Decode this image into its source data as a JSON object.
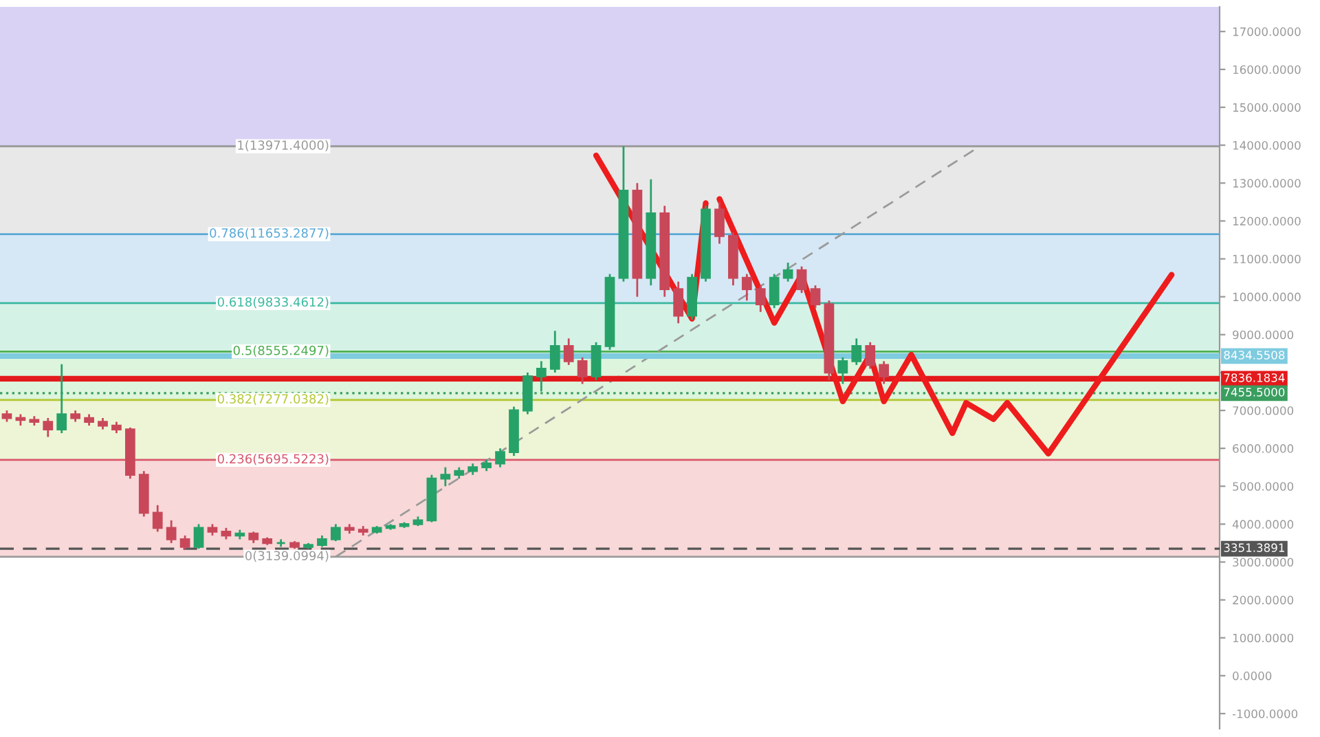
{
  "chart_data": {
    "type": "candlestick",
    "categories": [
      null,
      null,
      null,
      null,
      null,
      null,
      null,
      null,
      null,
      null,
      null,
      null,
      null,
      null,
      null,
      null,
      null,
      null,
      null,
      null,
      null,
      null,
      null,
      null,
      null,
      null,
      null,
      null,
      null,
      null,
      null,
      null,
      null,
      null,
      null,
      null,
      null,
      null,
      null,
      null,
      null,
      null,
      null,
      null,
      null,
      null,
      null,
      null,
      null,
      null,
      null,
      null,
      null,
      null,
      null,
      null,
      null,
      null,
      null,
      null,
      null,
      null,
      null,
      null,
      null,
      null,
      null,
      null,
      null,
      null,
      null,
      null,
      null,
      null,
      null,
      null,
      null,
      null,
      null,
      null,
      null,
      null,
      null,
      null,
      null,
      null,
      null,
      null,
      null
    ],
    "ohlc": [
      [
        6900,
        7000,
        6700,
        6800
      ],
      [
        6800,
        6900,
        6600,
        6750
      ],
      [
        6750,
        6850,
        6600,
        6700
      ],
      [
        6700,
        6800,
        6300,
        6500
      ],
      [
        6500,
        8220,
        6400,
        6900
      ],
      [
        6900,
        7000,
        6700,
        6800
      ],
      [
        6800,
        6900,
        6600,
        6700
      ],
      [
        6700,
        6800,
        6500,
        6600
      ],
      [
        6600,
        6700,
        6400,
        6500
      ],
      [
        6500,
        6550,
        5200,
        5300
      ],
      [
        5300,
        5400,
        4200,
        4300
      ],
      [
        4300,
        4500,
        3800,
        3900
      ],
      [
        3900,
        4100,
        3500,
        3600
      ],
      [
        3600,
        3700,
        3320,
        3400
      ],
      [
        3400,
        4000,
        3350,
        3900
      ],
      [
        3900,
        4000,
        3700,
        3800
      ],
      [
        3800,
        3900,
        3600,
        3700
      ],
      [
        3700,
        3850,
        3600,
        3750
      ],
      [
        3750,
        3800,
        3500,
        3600
      ],
      [
        3600,
        3650,
        3450,
        3500
      ],
      [
        3500,
        3600,
        3400,
        3500
      ],
      [
        3500,
        3550,
        3350,
        3400
      ],
      [
        3400,
        3500,
        3350,
        3450
      ],
      [
        3450,
        3700,
        3400,
        3600
      ],
      [
        3600,
        4000,
        3550,
        3900
      ],
      [
        3900,
        4000,
        3750,
        3850
      ],
      [
        3850,
        3950,
        3700,
        3800
      ],
      [
        3800,
        3950,
        3750,
        3900
      ],
      [
        3900,
        4000,
        3850,
        3950
      ],
      [
        3950,
        4050,
        3900,
        4000
      ],
      [
        4000,
        4200,
        3950,
        4100
      ],
      [
        4100,
        5300,
        4050,
        5200
      ],
      [
        5200,
        5500,
        5000,
        5300
      ],
      [
        5300,
        5500,
        5200,
        5400
      ],
      [
        5400,
        5600,
        5300,
        5500
      ],
      [
        5500,
        5700,
        5400,
        5600
      ],
      [
        5600,
        6000,
        5500,
        5900
      ],
      [
        5900,
        7100,
        5800,
        7000
      ],
      [
        7000,
        8000,
        6900,
        7900
      ],
      [
        7900,
        8300,
        7500,
        8100
      ],
      [
        8100,
        9100,
        8000,
        8700
      ],
      [
        8700,
        8900,
        8200,
        8300
      ],
      [
        8300,
        8400,
        7700,
        7900
      ],
      [
        7900,
        8800,
        7800,
        8700
      ],
      [
        8700,
        10600,
        8600,
        10500
      ],
      [
        10500,
        13971,
        10400,
        12800
      ],
      [
        12800,
        13000,
        10000,
        10500
      ],
      [
        10500,
        13100,
        10300,
        12200
      ],
      [
        12200,
        12400,
        10000,
        10200
      ],
      [
        10200,
        10400,
        9300,
        9500
      ],
      [
        9500,
        10600,
        9400,
        10500
      ],
      [
        10500,
        12400,
        10400,
        12300
      ],
      [
        12300,
        12500,
        11400,
        11600
      ],
      [
        11600,
        11700,
        10300,
        10500
      ],
      [
        10500,
        10600,
        9900,
        10200
      ],
      [
        10200,
        10300,
        9600,
        9800
      ],
      [
        9800,
        10600,
        9700,
        10500
      ],
      [
        10500,
        10900,
        10400,
        10700
      ],
      [
        10700,
        10800,
        10100,
        10200
      ],
      [
        10200,
        10300,
        9700,
        9800
      ],
      [
        9800,
        9900,
        7800,
        8000
      ],
      [
        8000,
        8400,
        7700,
        8300
      ],
      [
        8300,
        8900,
        8200,
        8700
      ],
      [
        8700,
        8800,
        8100,
        8200
      ],
      [
        8200,
        8300,
        7700,
        7900
      ],
      null,
      null,
      null,
      null,
      null,
      null,
      null,
      null,
      null,
      null,
      null,
      null,
      null,
      null,
      null,
      null,
      null,
      null,
      null,
      null,
      null,
      null,
      null,
      null
    ],
    "series": [
      {
        "type": "line",
        "color": "#ee1c1c",
        "values": [
          null,
          null,
          null,
          null,
          null,
          null,
          null,
          null,
          null,
          null,
          null,
          null,
          null,
          null,
          null,
          null,
          null,
          null,
          null,
          null,
          null,
          null,
          null,
          null,
          null,
          null,
          null,
          null,
          null,
          null,
          null,
          null,
          null,
          null,
          null,
          null,
          null,
          null,
          null,
          null,
          null,
          null,
          null,
          13730,
          null,
          null,
          null,
          null,
          null,
          null,
          9420,
          12470,
          null,
          null,
          null,
          null,
          null,
          null,
          null,
          null,
          null,
          null,
          null,
          null,
          null,
          null,
          null,
          null,
          null,
          null,
          null,
          null,
          null,
          null,
          null,
          null,
          null,
          null,
          null,
          null,
          null,
          null,
          null,
          null,
          null,
          null,
          null,
          null,
          null
        ]
      },
      {
        "type": "line",
        "color": "#ee1c1c",
        "values": [
          null,
          null,
          null,
          null,
          null,
          null,
          null,
          null,
          null,
          null,
          null,
          null,
          null,
          null,
          null,
          null,
          null,
          null,
          null,
          null,
          null,
          null,
          null,
          null,
          null,
          null,
          null,
          null,
          null,
          null,
          null,
          null,
          null,
          null,
          null,
          null,
          null,
          null,
          null,
          null,
          null,
          null,
          null,
          null,
          null,
          null,
          null,
          null,
          null,
          null,
          null,
          null,
          12580,
          null,
          null,
          null,
          9310,
          null,
          10580,
          null,
          null,
          7240,
          null,
          8470,
          7240,
          null,
          8470,
          null,
          null,
          6400,
          7200,
          null,
          6770,
          7200,
          null,
          null,
          5860,
          null,
          null,
          null,
          null,
          null,
          null,
          null,
          null,
          10580,
          null,
          null,
          null
        ]
      },
      {
        "type": "line",
        "color": "#9a9a9a",
        "line_style": "dashed",
        "values": [
          null,
          null,
          null,
          null,
          null,
          null,
          null,
          null,
          null,
          null,
          null,
          null,
          null,
          null,
          null,
          null,
          null,
          null,
          null,
          null,
          null,
          null,
          null,
          null,
          3140,
          null,
          null,
          null,
          null,
          null,
          null,
          null,
          null,
          null,
          null,
          null,
          null,
          null,
          null,
          null,
          null,
          null,
          null,
          null,
          null,
          null,
          null,
          null,
          null,
          null,
          null,
          null,
          null,
          null,
          null,
          null,
          null,
          null,
          null,
          null,
          null,
          null,
          null,
          null,
          null,
          null,
          null,
          null,
          null,
          null,
          null,
          13970,
          null,
          null,
          null,
          null,
          null,
          null,
          null,
          null,
          null,
          null,
          null,
          null,
          null,
          null,
          null,
          null,
          null
        ]
      }
    ],
    "ylim": [
      -1400,
      17650
    ],
    "yticks": [
      {
        "value": -1000,
        "label": "-1000.0000"
      },
      {
        "value": 0,
        "label": "0.0000"
      },
      {
        "value": 1000,
        "label": "1000.0000"
      },
      {
        "value": 2000,
        "label": "2000.0000"
      },
      {
        "value": 3000,
        "label": "3000.0000"
      },
      {
        "value": 4000,
        "label": "4000.0000"
      },
      {
        "value": 5000,
        "label": "5000.0000"
      },
      {
        "value": 6000,
        "label": "6000.0000"
      },
      {
        "value": 7000,
        "label": "7000.0000"
      },
      {
        "value": 8000,
        "label": null
      },
      {
        "value": 9000,
        "label": "9000.0000"
      },
      {
        "value": 10000,
        "label": "10000.0000"
      },
      {
        "value": 11000,
        "label": "11000.0000"
      },
      {
        "value": 12000,
        "label": "12000.0000"
      },
      {
        "value": 13000,
        "label": "13000.0000"
      },
      {
        "value": 14000,
        "label": "14000.0000"
      },
      {
        "value": 15000,
        "label": "15000.0000"
      },
      {
        "value": 16000,
        "label": "16000.0000"
      },
      {
        "value": 17000,
        "label": "17000.0000"
      }
    ],
    "bands": [
      {
        "axis": "y",
        "from": 13971.4,
        "to": 17650,
        "color": "#d9d2f5"
      },
      {
        "axis": "y",
        "from": 11653.2877,
        "to": 13971.4,
        "color": "#e8e8e8"
      },
      {
        "axis": "y",
        "from": 9833.4612,
        "to": 11653.2877,
        "color": "#d6e8f5"
      },
      {
        "axis": "y",
        "from": 8555.2497,
        "to": 9833.4612,
        "color": "#d5f2e6"
      },
      {
        "axis": "y",
        "from": 7277.0382,
        "to": 8555.2497,
        "color": "#ddf5dc"
      },
      {
        "axis": "y",
        "from": 5695.5223,
        "to": 7277.0382,
        "color": "#eef5d6"
      },
      {
        "axis": "y",
        "from": 3139.0994,
        "to": 5695.5223,
        "color": "#f8d8d8"
      }
    ],
    "ref_lines": [
      {
        "axis": "y",
        "value": 13971.4,
        "label": "1(13971.4000)",
        "color": "#9a9a9a",
        "line_style": "solid"
      },
      {
        "axis": "y",
        "value": 11653.2877,
        "label": "0.786(11653.2877)",
        "color": "#5aa9d6",
        "line_style": "solid"
      },
      {
        "axis": "y",
        "value": 9833.4612,
        "label": "0.618(9833.4612)",
        "color": "#3bb8a0",
        "line_style": "solid"
      },
      {
        "axis": "y",
        "value": 8555.2497,
        "label": "0.5(8555.2497)",
        "color": "#4caf50",
        "line_style": "solid"
      },
      {
        "axis": "y",
        "value": 7277.0382,
        "label": "0.382(7277.0382)",
        "color": "#b5c93a",
        "line_style": "solid"
      },
      {
        "axis": "y",
        "value": 5695.5223,
        "label": "0.236(5695.5223)",
        "color": "#d9576b",
        "line_style": "solid"
      },
      {
        "axis": "y",
        "value": 3139.0994,
        "label": "0(3139.0994)",
        "color": "#9a9a9a",
        "line_style": "solid"
      },
      {
        "axis": "y",
        "value": 8434.5508,
        "label": "8434.5508",
        "color": "#7fcbe0",
        "line_style": "solid"
      },
      {
        "axis": "y",
        "value": 7836.1834,
        "label": "7836.1834",
        "color": "#e31a1c",
        "line_style": "solid"
      },
      {
        "axis": "y",
        "value": 7455.5,
        "label": "7455.5000",
        "color": "#3a9e5f",
        "line_style": "dotted"
      },
      {
        "axis": "y",
        "value": 3351.3891,
        "label": "3351.3891",
        "color": "#555555",
        "line_style": "dashed"
      }
    ],
    "grid": false,
    "legend": false,
    "tick_labels": "y"
  }
}
